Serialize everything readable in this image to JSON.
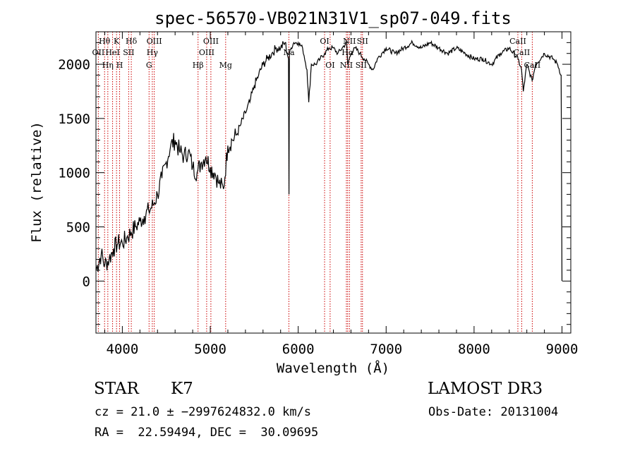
{
  "chart_data": {
    "type": "line",
    "title": "spec-56570-VB021N31V1_sp07-049.fits",
    "xlabel": "Wavelength (Å)",
    "ylabel": "Flux (relative)",
    "xlim": [
      3700,
      9100
    ],
    "ylim": [
      -480,
      2300
    ],
    "x_ticks": [
      4000,
      5000,
      6000,
      7000,
      8000,
      9000
    ],
    "y_ticks": [
      0,
      500,
      1000,
      1500,
      2000
    ],
    "x_tick_labels": [
      "4000",
      "5000",
      "6000",
      "7000",
      "8000",
      "9000"
    ],
    "y_tick_labels": [
      "0",
      "500",
      "1000",
      "1500",
      "2000"
    ],
    "line_color": "#000000",
    "marker_color": "#cc0000",
    "series": [
      {
        "name": "spectrum",
        "x": [
          3700,
          3760,
          3800,
          3850,
          3900,
          3950,
          4000,
          4050,
          4100,
          4150,
          4200,
          4250,
          4300,
          4350,
          4400,
          4450,
          4500,
          4550,
          4600,
          4650,
          4700,
          4750,
          4800,
          4850,
          4900,
          4950,
          5000,
          5050,
          5100,
          5150,
          5200,
          5250,
          5300,
          5350,
          5400,
          5450,
          5500,
          5550,
          5600,
          5650,
          5700,
          5750,
          5800,
          5850,
          5890,
          5895,
          5900,
          5920,
          5950,
          6000,
          6050,
          6100,
          6120,
          6150,
          6200,
          6250,
          6300,
          6350,
          6400,
          6450,
          6500,
          6550,
          6563,
          6600,
          6650,
          6700,
          6750,
          6800,
          6850,
          6900,
          6950,
          7000,
          7100,
          7200,
          7300,
          7400,
          7500,
          7600,
          7700,
          7800,
          7900,
          8000,
          8100,
          8200,
          8300,
          8400,
          8500,
          8540,
          8560,
          8600,
          8660,
          8700,
          8800,
          8900,
          8950,
          8990,
          9000
        ],
        "y": [
          100,
          250,
          150,
          200,
          300,
          350,
          350,
          400,
          450,
          500,
          550,
          600,
          650,
          700,
          800,
          950,
          1100,
          1250,
          1300,
          1200,
          1150,
          1200,
          1050,
          1000,
          1100,
          1150,
          1050,
          1000,
          900,
          850,
          1250,
          1300,
          1350,
          1450,
          1550,
          1650,
          1800,
          1900,
          2000,
          2050,
          2100,
          2150,
          2150,
          2200,
          2050,
          800,
          2100,
          2150,
          2200,
          2200,
          2150,
          1950,
          1650,
          2000,
          2000,
          2050,
          2100,
          2150,
          2150,
          2100,
          2150,
          2200,
          2000,
          2100,
          2150,
          2100,
          2050,
          2000,
          1950,
          2050,
          2100,
          2150,
          2100,
          2150,
          2200,
          2150,
          2200,
          2150,
          2100,
          2150,
          2100,
          2050,
          2050,
          2000,
          2100,
          2150,
          2050,
          1950,
          1750,
          2000,
          1850,
          2000,
          2100,
          2050,
          2000,
          1900,
          0
        ]
      }
    ],
    "line_markers": [
      {
        "wavelength": 3727,
        "label": "OII",
        "row": 2
      },
      {
        "wavelength": 3798,
        "label": "Hθ",
        "row": 1
      },
      {
        "wavelength": 3835,
        "label": "Hη",
        "row": 3
      },
      {
        "wavelength": 3889,
        "label": "HeI",
        "row": 2
      },
      {
        "wavelength": 3934,
        "label": "K",
        "row": 1
      },
      {
        "wavelength": 3969,
        "label": "H",
        "row": 3
      },
      {
        "wavelength": 4072,
        "label": "SII",
        "row": 2
      },
      {
        "wavelength": 4102,
        "label": "Hδ",
        "row": 1
      },
      {
        "wavelength": 4304,
        "label": "G",
        "row": 3
      },
      {
        "wavelength": 4341,
        "label": "Hγ",
        "row": 2
      },
      {
        "wavelength": 4363,
        "label": "OIII",
        "row": 1
      },
      {
        "wavelength": 4861,
        "label": "Hβ",
        "row": 3
      },
      {
        "wavelength": 4959,
        "label": "OIII",
        "row": 2
      },
      {
        "wavelength": 5007,
        "label": "OIII",
        "row": 1
      },
      {
        "wavelength": 5175,
        "label": "Mg",
        "row": 3
      },
      {
        "wavelength": 5894,
        "label": "Na",
        "row": 2
      },
      {
        "wavelength": 6300,
        "label": "OI",
        "row": 1
      },
      {
        "wavelength": 6363,
        "label": "OI",
        "row": 3
      },
      {
        "wavelength": 6548,
        "label": "NII",
        "row": 3
      },
      {
        "wavelength": 6563,
        "label": "Hα",
        "row": 2
      },
      {
        "wavelength": 6583,
        "label": "NII",
        "row": 1
      },
      {
        "wavelength": 6716,
        "label": "SII",
        "row": 3
      },
      {
        "wavelength": 6731,
        "label": "SII",
        "row": 1
      },
      {
        "wavelength": 8498,
        "label": "CaII",
        "row": 1
      },
      {
        "wavelength": 8542,
        "label": "CaII",
        "row": 2
      },
      {
        "wavelength": 8662,
        "label": "CaII",
        "row": 3
      }
    ]
  },
  "footer": {
    "object_class": "STAR",
    "subclass": "K7",
    "survey": "LAMOST DR3",
    "redshift": "cz = 21.0 ± −2997624832.0 km/s",
    "obs_date": "Obs-Date: 20131004",
    "coords": "RA =  22.59494, DEC =  30.09695"
  }
}
